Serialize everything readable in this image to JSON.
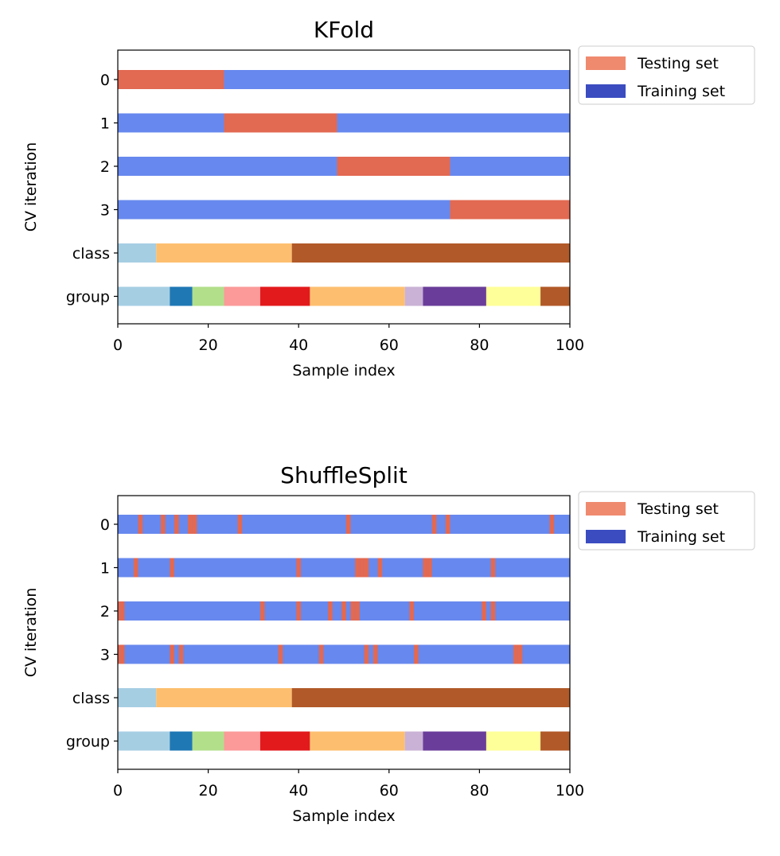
{
  "chart_data": [
    {
      "type": "bar",
      "title": "KFold",
      "xlabel": "Sample index",
      "ylabel": "CV iteration",
      "xlim": [
        0,
        100
      ],
      "xticks": [
        0,
        20,
        40,
        60,
        80,
        100
      ],
      "rows": [
        "0",
        "1",
        "2",
        "3",
        "class",
        "group"
      ],
      "legend": {
        "placement": "outside-top-right",
        "entries": [
          {
            "label": "Testing set",
            "color": "#ef8a6f"
          },
          {
            "label": "Training set",
            "color": "#3b4cc0"
          }
        ]
      },
      "colors": {
        "test": "#e26952",
        "train": "#6788ee"
      },
      "iterations": [
        {
          "test_ranges": [
            [
              0,
              23.5
            ]
          ]
        },
        {
          "test_ranges": [
            [
              23.5,
              48.5
            ]
          ]
        },
        {
          "test_ranges": [
            [
              48.5,
              73.5
            ]
          ]
        },
        {
          "test_ranges": [
            [
              73.5,
              100
            ]
          ]
        }
      ],
      "class_segments": [
        {
          "start": 0,
          "end": 8.5,
          "color": "#a6cee3"
        },
        {
          "start": 8.5,
          "end": 38.5,
          "color": "#fdbf6f"
        },
        {
          "start": 38.5,
          "end": 100,
          "color": "#b15928"
        }
      ],
      "group_segments": [
        {
          "start": 0,
          "end": 11.5,
          "color": "#a6cee3"
        },
        {
          "start": 11.5,
          "end": 16.5,
          "color": "#1f78b4"
        },
        {
          "start": 16.5,
          "end": 23.5,
          "color": "#b2df8a"
        },
        {
          "start": 23.5,
          "end": 31.5,
          "color": "#fb9a99"
        },
        {
          "start": 31.5,
          "end": 42.5,
          "color": "#e31a1c"
        },
        {
          "start": 42.5,
          "end": 63.5,
          "color": "#fdbf6f"
        },
        {
          "start": 63.5,
          "end": 67.5,
          "color": "#cab2d6"
        },
        {
          "start": 67.5,
          "end": 81.5,
          "color": "#6a3d9a"
        },
        {
          "start": 81.5,
          "end": 93.5,
          "color": "#ffff99"
        },
        {
          "start": 93.5,
          "end": 100,
          "color": "#b15928"
        }
      ]
    },
    {
      "type": "bar",
      "title": "ShuffleSplit",
      "xlabel": "Sample index",
      "ylabel": "CV iteration",
      "xlim": [
        0,
        100
      ],
      "xticks": [
        0,
        20,
        40,
        60,
        80,
        100
      ],
      "rows": [
        "0",
        "1",
        "2",
        "3",
        "class",
        "group"
      ],
      "legend": {
        "placement": "outside-top-right",
        "entries": [
          {
            "label": "Testing set",
            "color": "#ef8a6f"
          },
          {
            "label": "Training set",
            "color": "#3b4cc0"
          }
        ]
      },
      "colors": {
        "test": "#e26952",
        "train": "#6788ee"
      },
      "iterations": [
        {
          "test_indices": [
            5,
            10,
            13,
            16,
            17,
            27,
            51,
            70,
            73,
            96
          ]
        },
        {
          "test_indices": [
            4,
            12,
            40,
            53,
            54,
            55,
            58,
            68,
            69,
            83
          ]
        },
        {
          "test_indices": [
            0,
            1,
            32,
            40,
            47,
            50,
            52,
            53,
            65,
            81,
            83
          ]
        },
        {
          "test_indices": [
            0,
            1,
            12,
            14,
            36,
            45,
            55,
            57,
            66,
            88,
            89
          ]
        }
      ],
      "class_segments": [
        {
          "start": 0,
          "end": 8.5,
          "color": "#a6cee3"
        },
        {
          "start": 8.5,
          "end": 38.5,
          "color": "#fdbf6f"
        },
        {
          "start": 38.5,
          "end": 100,
          "color": "#b15928"
        }
      ],
      "group_segments": [
        {
          "start": 0,
          "end": 11.5,
          "color": "#a6cee3"
        },
        {
          "start": 11.5,
          "end": 16.5,
          "color": "#1f78b4"
        },
        {
          "start": 16.5,
          "end": 23.5,
          "color": "#b2df8a"
        },
        {
          "start": 23.5,
          "end": 31.5,
          "color": "#fb9a99"
        },
        {
          "start": 31.5,
          "end": 42.5,
          "color": "#e31a1c"
        },
        {
          "start": 42.5,
          "end": 63.5,
          "color": "#fdbf6f"
        },
        {
          "start": 63.5,
          "end": 67.5,
          "color": "#cab2d6"
        },
        {
          "start": 67.5,
          "end": 81.5,
          "color": "#6a3d9a"
        },
        {
          "start": 81.5,
          "end": 93.5,
          "color": "#ffff99"
        },
        {
          "start": 93.5,
          "end": 100,
          "color": "#b15928"
        }
      ]
    }
  ]
}
